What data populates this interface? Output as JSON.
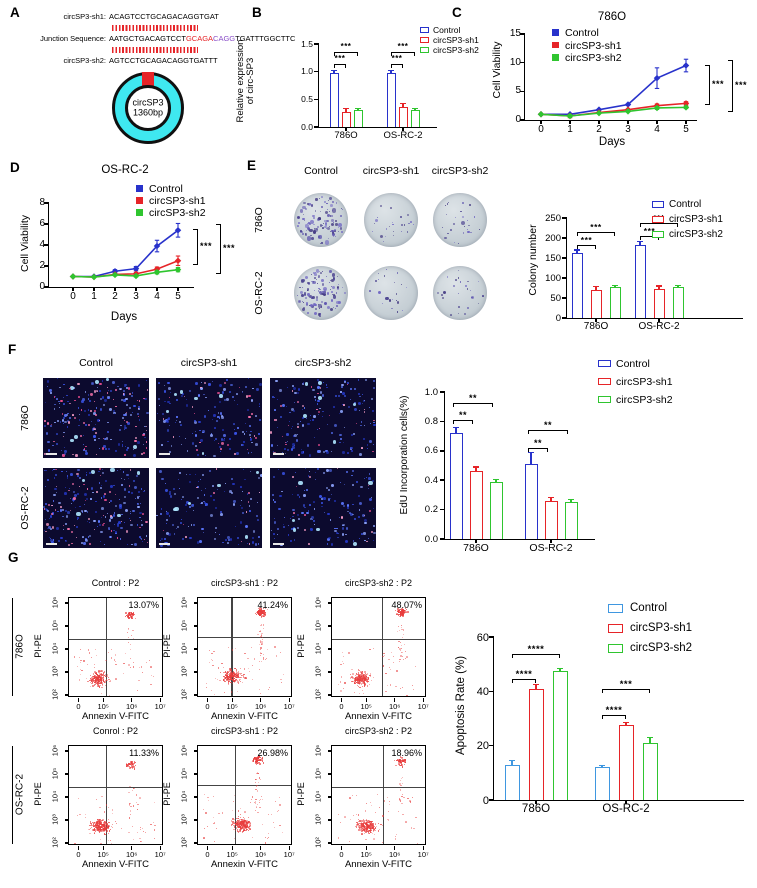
{
  "colors": {
    "series": [
      "#2832cb",
      "#e62428",
      "#2fc52f"
    ],
    "apoptosis_control": "#3f97e0",
    "seq_red": "#e62428",
    "seq_purple": "#8a4fc8",
    "ring_cyan": "#3fe8f0",
    "scatter_red": "#e83c3c"
  },
  "legend": {
    "items": [
      {
        "label": "Control"
      },
      {
        "label": "circSP3-sh1"
      },
      {
        "label": "circSP3-sh2"
      }
    ]
  },
  "panel_a": {
    "label": "A",
    "sh1_label": "circSP3-sh1:",
    "sh1_seq": "ACAGTCCTGCAGACAGGTGAT",
    "junction_label": "Junction Sequence:",
    "junction_p1": "AATGCTGACAGTCCT",
    "junction_p2": "GCAGA",
    "junction_p3": "CAGG",
    "junction_p4": "TGATTTGGCTTC",
    "sh2_label": "circSP3-sh2:",
    "sh2_seq": "AGTCCTGCAGACAGGTGATTT",
    "circle_line1": "circSP3",
    "circle_line2": "1360bp"
  },
  "panel_b": {
    "label": "B",
    "chart": {
      "type": "bar",
      "ylabel_line1": "Relative expression",
      "ylabel_line2": "of circ-SP3",
      "ylim": [
        0,
        1.5
      ],
      "yticks": [
        "0.0",
        "0.5",
        "1.0",
        "1.5"
      ],
      "categories": [
        "786O",
        "OS-RC-2"
      ],
      "series": [
        {
          "name": "Control",
          "values": [
            0.97,
            0.97
          ],
          "err": [
            0.05,
            0.05
          ]
        },
        {
          "name": "circSP3-sh1",
          "values": [
            0.28,
            0.37
          ],
          "err": [
            0.05,
            0.05
          ]
        },
        {
          "name": "circSP3-sh2",
          "values": [
            0.3,
            0.3
          ],
          "err": [
            0.04,
            0.04
          ]
        }
      ],
      "sig": [
        "***",
        "***",
        "***",
        "***"
      ]
    }
  },
  "panel_c": {
    "label": "C",
    "title": "786O",
    "chart": {
      "type": "line",
      "xlabel": "Days",
      "ylabel": "Cell Viability",
      "ylim": [
        0,
        15
      ],
      "yticks": [
        "0",
        "5",
        "10",
        "15"
      ],
      "x": [
        "0",
        "1",
        "2",
        "3",
        "4",
        "5"
      ],
      "series": [
        {
          "name": "Control",
          "values": [
            1,
            1,
            1.8,
            2.7,
            7.3,
            9.5
          ],
          "err": [
            0,
            0,
            0,
            0,
            1.8,
            1.1
          ]
        },
        {
          "name": "circSP3-sh1",
          "values": [
            1,
            0.7,
            1.3,
            1.8,
            2.5,
            2.9
          ],
          "err": [
            0,
            0.3,
            0,
            0,
            0.3,
            0.3
          ]
        },
        {
          "name": "circSP3-sh2",
          "values": [
            1,
            0.7,
            1.2,
            1.5,
            2.1,
            2.2
          ],
          "err": [
            0,
            0.25,
            0,
            0,
            0.25,
            0.2
          ]
        }
      ],
      "sig": [
        "***",
        "***"
      ]
    }
  },
  "panel_d": {
    "label": "D",
    "title": "OS-RC-2",
    "chart": {
      "type": "line",
      "xlabel": "Days",
      "ylabel": "Cell Viability",
      "ylim": [
        0,
        8
      ],
      "yticks": [
        "0",
        "2",
        "4",
        "6",
        "8"
      ],
      "x": [
        "0",
        "1",
        "2",
        "3",
        "4",
        "5"
      ],
      "series": [
        {
          "name": "Control",
          "values": [
            1,
            1,
            1.5,
            1.75,
            3.9,
            5.4
          ],
          "err": [
            0,
            0,
            0.15,
            0.2,
            0.55,
            0.65
          ]
        },
        {
          "name": "circSP3-sh1",
          "values": [
            1,
            0.95,
            1.2,
            1.25,
            1.7,
            2.5
          ],
          "err": [
            0,
            0,
            0.1,
            0.15,
            0.2,
            0.45
          ]
        },
        {
          "name": "circSP3-sh2",
          "values": [
            1,
            0.95,
            1.15,
            1.05,
            1.4,
            1.65
          ],
          "err": [
            0,
            0,
            0.1,
            0.1,
            0.15,
            0.2
          ]
        }
      ],
      "sig": [
        "***",
        "***"
      ]
    }
  },
  "panel_e": {
    "label": "E",
    "col_headers": [
      "Control",
      "circSP3-sh1",
      "circSP3-sh2"
    ],
    "row_labels": [
      "786O",
      "OS-RC-2"
    ],
    "chart": {
      "type": "bar",
      "ylabel": "Colony number",
      "ylim": [
        0,
        250
      ],
      "yticks": [
        "0",
        "50",
        "100",
        "150",
        "200",
        "250"
      ],
      "categories": [
        "786O",
        "OS-RC-2"
      ],
      "series": [
        {
          "name": "Control",
          "values": [
            162,
            183
          ],
          "err": [
            8,
            9
          ]
        },
        {
          "name": "circSP3-sh1",
          "values": [
            70,
            73
          ],
          "err": [
            9,
            7
          ]
        },
        {
          "name": "circSP3-sh2",
          "values": [
            77,
            77
          ],
          "err": [
            5,
            5
          ]
        }
      ],
      "sig": [
        "***",
        "***",
        "***",
        "***"
      ]
    }
  },
  "panel_f": {
    "label": "F",
    "col_headers": [
      "Control",
      "circSP3-sh1",
      "circSP3-sh2"
    ],
    "row_labels": [
      "786O",
      "OS-RC-2"
    ],
    "chart": {
      "type": "bar",
      "ylabel": "EdU Incorporation cells(%)",
      "ylim": [
        0,
        1
      ],
      "yticks": [
        "0.0",
        "0.2",
        "0.4",
        "0.6",
        "0.8",
        "1.0"
      ],
      "categories": [
        "786O",
        "OS-RC-2"
      ],
      "series": [
        {
          "name": "Control",
          "values": [
            0.72,
            0.51
          ],
          "err": [
            0.04,
            0.08
          ]
        },
        {
          "name": "circSP3-sh1",
          "values": [
            0.46,
            0.26
          ],
          "err": [
            0.03,
            0.02
          ]
        },
        {
          "name": "circSP3-sh2",
          "values": [
            0.39,
            0.25
          ],
          "err": [
            0.015,
            0.02
          ]
        }
      ],
      "sig": [
        "**",
        "**",
        "**",
        "**"
      ]
    }
  },
  "panel_g": {
    "label": "G",
    "row_labels": [
      "786O",
      "OS-RC-2"
    ],
    "pi_label": "PI-PE",
    "x_label": "Annexin V-FITC",
    "yticks": [
      "10²",
      "10³",
      "10⁴",
      "10⁵",
      "10⁶"
    ],
    "xticks": [
      "0",
      "10⁵",
      "10⁶",
      "10⁷"
    ],
    "plots": [
      {
        "title": "Control : P2",
        "percent": "13.07%"
      },
      {
        "title": "circSP3-sh1 : P2",
        "percent": "41.24%"
      },
      {
        "title": "circSP3-sh2 : P2",
        "percent": "48.07%"
      },
      {
        "title": "Conrol : P2",
        "percent": "11.33%"
      },
      {
        "title": "circSP3-sh1 : P2",
        "percent": "26.98%"
      },
      {
        "title": "circSP3-sh2 : P2",
        "percent": "18.96%"
      }
    ],
    "chart": {
      "type": "bar",
      "ylabel": "Apoptosis Rate (%)",
      "ylim": [
        0,
        60
      ],
      "yticks": [
        "0",
        "20",
        "40",
        "60"
      ],
      "categories": [
        "786O",
        "OS-RC-2"
      ],
      "series": [
        {
          "name": "Control",
          "values": [
            13,
            12
          ],
          "err": [
            1.5,
            0.8
          ]
        },
        {
          "name": "circSP3-sh1",
          "values": [
            41,
            27.5
          ],
          "err": [
            1.5,
            1
          ]
        },
        {
          "name": "circSP3-sh2",
          "values": [
            47.5,
            21
          ],
          "err": [
            1,
            2
          ]
        }
      ],
      "sig": [
        "****",
        "****",
        "****",
        "***"
      ]
    }
  }
}
